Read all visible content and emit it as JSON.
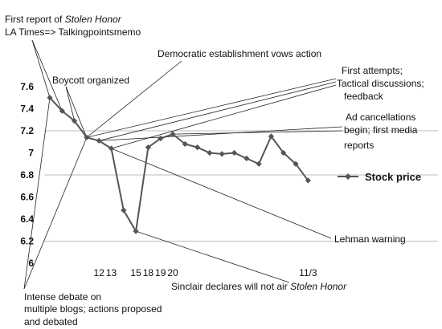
{
  "chart_data": {
    "type": "line",
    "title": "",
    "xlabel": "",
    "ylabel": "",
    "ylim": [
      6,
      7.6
    ],
    "yticks": [
      "7.6",
      "7.4",
      "7.2",
      "7",
      "6.8",
      "6.6",
      "6.4",
      "6.2",
      "6"
    ],
    "grid_y_values": [
      6.2,
      6.8,
      7.2
    ],
    "x_tick_labels": [
      {
        "i": 4,
        "text": "12"
      },
      {
        "i": 5,
        "text": "13"
      },
      {
        "i": 7,
        "text": "15"
      },
      {
        "i": 8,
        "text": "18"
      },
      {
        "i": 9,
        "text": "19"
      },
      {
        "i": 10,
        "text": "20"
      },
      {
        "i": 21,
        "text": "11/3"
      }
    ],
    "series": [
      {
        "name": "Stock price",
        "color": "#555555",
        "marker": "diamond",
        "values": [
          7.5,
          7.38,
          7.29,
          7.14,
          7.11,
          7.04,
          6.48,
          6.29,
          7.05,
          7.13,
          7.17,
          7.08,
          7.05,
          7.0,
          6.99,
          7.0,
          6.95,
          6.9,
          7.15,
          7.0,
          6.9,
          6.75
        ]
      }
    ],
    "legend_position": "right",
    "annotations": [
      {
        "id": "first-report",
        "lines": [
          "First report of |Stolen Honor|",
          "LA Times=> Talkingpointsmemo"
        ],
        "anchor": "top-left"
      },
      {
        "id": "boycott",
        "lines": [
          "Boycott organized"
        ],
        "anchor": "upper-left"
      },
      {
        "id": "democratic",
        "lines": [
          "Democratic establishment vows action"
        ],
        "anchor": "top-center"
      },
      {
        "id": "first-attempts",
        "lines": [
          "First attempts;",
          "Tactical discussions;",
          "feedback"
        ],
        "anchor": "top-right"
      },
      {
        "id": "ad-cancellations",
        "lines": [
          "Ad cancellations",
          "begin; first media",
          "reports"
        ],
        "anchor": "right"
      },
      {
        "id": "lehman",
        "lines": [
          "Lehman warning"
        ],
        "anchor": "lower-right"
      },
      {
        "id": "sinclair",
        "lines": [
          "Sinclair declares will not air |Stolen Honor|"
        ],
        "anchor": "bottom-center"
      },
      {
        "id": "intense-debate",
        "lines": [
          "Intense debate on",
          "multiple blogs; actions proposed",
          "and debated"
        ],
        "anchor": "bottom-left"
      }
    ]
  }
}
